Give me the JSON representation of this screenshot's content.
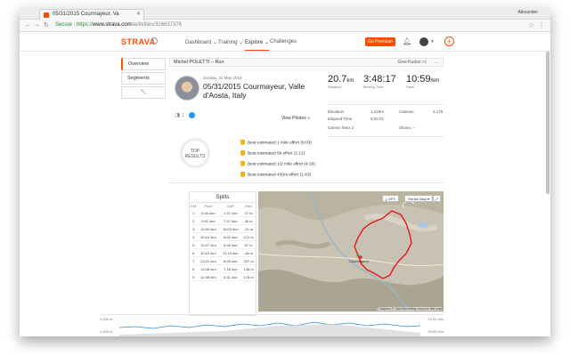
{
  "browser": {
    "tab_title": "05/31/2015 Courmayeur, Va",
    "user": "Alexander",
    "url_secure": "Secure",
    "url_scheme": "https://",
    "url_host": "www.strava.com",
    "url_path": "/activities/316637376"
  },
  "nav": {
    "logo": "STRAVA",
    "links": [
      "Dashboard",
      "Training",
      "Explore",
      "Challenges"
    ],
    "active": "Explore",
    "premium": "Go Premium"
  },
  "sidebar": {
    "items": [
      "Overview",
      "Segments"
    ]
  },
  "activity": {
    "header": "Michel POLETTI – Run",
    "give_kudos": "Give Kudos",
    "date": "Sunday, 31 May 2015",
    "title": "05/31/2015 Courmayeur, Valle d'Aosta, Italy",
    "kudos_count": "1",
    "view_photos": "View Photos »"
  },
  "stats": {
    "distance": "20.7",
    "distance_unit": "km",
    "distance_label": "Distance",
    "moving_time": "3:48:17",
    "moving_time_label": "Moving Time",
    "pace": "10:59",
    "pace_unit": "/km",
    "pace_label": "Pace",
    "elevation_label": "Elevation",
    "elevation": "1,216m",
    "elapsed_label": "Elapsed Time",
    "elapsed": "5:02:01",
    "calories_label": "Calories",
    "calories": "2,175",
    "device": "Garmin fenix 2",
    "shoes": "Shoes: --"
  },
  "top_results": {
    "label_line1": "TOP",
    "label_line2": "RESULTS",
    "items": [
      "Best estimated 1 mile effort (9:03)",
      "Best estimated 5k effort (1:12)",
      "Best estimated 1/2 mile effort (4:33)",
      "Best estimated 400m effort (1:43)"
    ]
  },
  "splits": {
    "title": "Splits",
    "headers": [
      "KM",
      "Pace",
      "GAP",
      "Elev"
    ],
    "rows": [
      [
        "1",
        "8:44 /km",
        "7:47 /km",
        "37 m"
      ],
      [
        "2",
        "9:02 /km",
        "7:47 /km",
        "46 m"
      ],
      [
        "3",
        "10:00 /km",
        "10:03 /km",
        "-21 m"
      ],
      [
        "4",
        "10:16 /km",
        "8:02 /km",
        "121 m"
      ],
      [
        "5",
        "10:07 /km",
        "8:49 /km",
        "87 m"
      ],
      [
        "6",
        "10:15 /km",
        "11:15 /km",
        "-46 m"
      ],
      [
        "7",
        "13:22 /km",
        "8:29 /km",
        "207 m"
      ],
      [
        "8",
        "13:08 /km",
        "7:18 /km",
        "138 m"
      ],
      [
        "9",
        "12:48 /km",
        "6:31 /km",
        "178 m"
      ]
    ]
  },
  "map": {
    "gpx": "GPX",
    "type": "Terrain Map",
    "credit": "© Mapbox © OpenStreetMap Improve this map",
    "label_courmayeur": "Courmayeur"
  },
  "elevation": {
    "y_left_top": "2,000 m",
    "y_left_bottom": "1,000 m",
    "y_right_top": "10:00 /km",
    "y_right_bottom": "20:00 /km"
  },
  "colors": {
    "brand": "#fc4c02",
    "route": "#e8141c",
    "elev_line": "#2b8fd6"
  }
}
